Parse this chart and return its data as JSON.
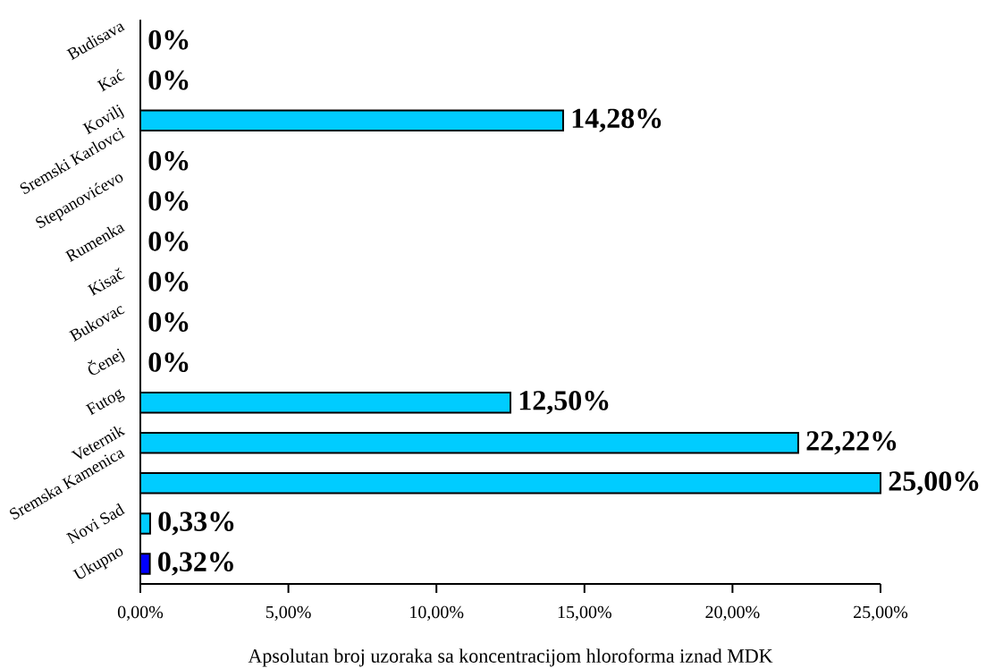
{
  "chart_data": {
    "type": "bar",
    "orientation": "horizontal",
    "xlabel": "Apsolutan broj uzoraka sa koncentracijom hloroforma iznad MDK",
    "categories": [
      "Budisava",
      "Kać",
      "Kovilj",
      "Sremski Karlovci",
      "Stepanovićevo",
      "Rumenka",
      "Kisač",
      "Bukovac",
      "Čenej",
      "Futog",
      "Veternik",
      "Sremska Kamenica",
      "Novi Sad",
      "Ukupno"
    ],
    "values": [
      0,
      0,
      14.28,
      0,
      0,
      0,
      0,
      0,
      0,
      12.5,
      22.22,
      25,
      0.33,
      0.32
    ],
    "value_labels": [
      "0%",
      "0%",
      "14,28%",
      "0%",
      "0%",
      "0%",
      "0%",
      "0%",
      "0%",
      "12,50%",
      "22,22%",
      "25,00%",
      "0,33%",
      "0,32%"
    ],
    "colors": [
      "#00ccff",
      "#00ccff",
      "#00ccff",
      "#00ccff",
      "#00ccff",
      "#00ccff",
      "#00ccff",
      "#00ccff",
      "#00ccff",
      "#00ccff",
      "#00ccff",
      "#00ccff",
      "#00ccff",
      "#0000ff"
    ],
    "xlim": [
      0,
      25
    ],
    "xticks": [
      {
        "value": 0,
        "label": "0,00%"
      },
      {
        "value": 5,
        "label": "5,00%"
      },
      {
        "value": 10,
        "label": "10,00%"
      },
      {
        "value": 15,
        "label": "15,00%"
      },
      {
        "value": 20,
        "label": "20,00%"
      },
      {
        "value": 25,
        "label": "25,00%"
      }
    ]
  }
}
